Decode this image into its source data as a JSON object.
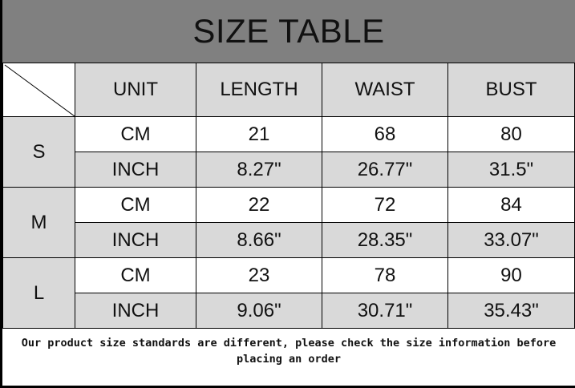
{
  "title": "SIZE TABLE",
  "headers": [
    "UNIT",
    "LENGTH",
    "WAIST",
    "BUST"
  ],
  "colors": {
    "title_bg": "#808080",
    "cell_gray": "#d9d9d9",
    "cell_white": "#ffffff"
  },
  "sizes": [
    {
      "size": "S",
      "rows": [
        {
          "unit": "CM",
          "length": "21",
          "waist": "68",
          "bust": "80"
        },
        {
          "unit": "INCH",
          "length": "8.27\"",
          "waist": "26.77\"",
          "bust": "31.5\""
        }
      ]
    },
    {
      "size": "M",
      "rows": [
        {
          "unit": "CM",
          "length": "22",
          "waist": "72",
          "bust": "84"
        },
        {
          "unit": "INCH",
          "length": "8.66\"",
          "waist": "28.35\"",
          "bust": "33.07\""
        }
      ]
    },
    {
      "size": "L",
      "rows": [
        {
          "unit": "CM",
          "length": "23",
          "waist": "78",
          "bust": "90"
        },
        {
          "unit": "INCH",
          "length": "9.06\"",
          "waist": "30.71\"",
          "bust": "35.43\""
        }
      ]
    }
  ],
  "note": "Our product size standards are different, please check the size information before placing an order"
}
